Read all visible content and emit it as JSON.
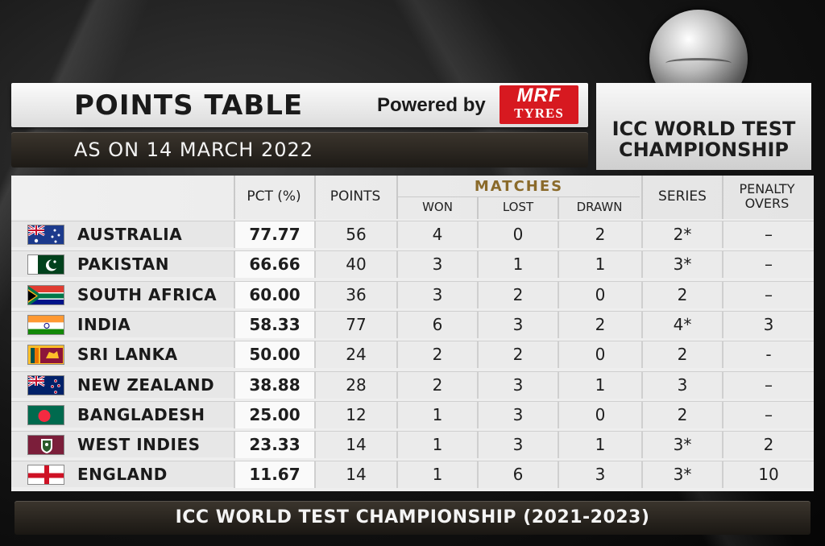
{
  "header": {
    "title": "POINTS TABLE",
    "powered_by": "Powered by",
    "sponsor_line1": "MRF",
    "sponsor_line2": "TYRES",
    "date": "AS ON 14 MARCH 2022",
    "logo_line1": "ICC WORLD TEST",
    "logo_line2": "CHAMPIONSHIP"
  },
  "columns": {
    "pct": "PCT (%)",
    "points": "POINTS",
    "matches": "MATCHES",
    "won": "WON",
    "lost": "LOST",
    "drawn": "DRAWN",
    "series": "SERIES",
    "penalty_line1": "PENALTY",
    "penalty_line2": "OVERS"
  },
  "rows": [
    {
      "team": "AUSTRALIA",
      "flag": "australia-flag",
      "pct": "77.77",
      "points": "56",
      "won": "4",
      "lost": "0",
      "drawn": "2",
      "series": "2*",
      "penalty": "–"
    },
    {
      "team": "PAKISTAN",
      "flag": "pakistan-flag",
      "pct": "66.66",
      "points": "40",
      "won": "3",
      "lost": "1",
      "drawn": "1",
      "series": "3*",
      "penalty": "–"
    },
    {
      "team": "SOUTH AFRICA",
      "flag": "south-africa-flag",
      "pct": "60.00",
      "points": "36",
      "won": "3",
      "lost": "2",
      "drawn": "0",
      "series": "2",
      "penalty": "–"
    },
    {
      "team": "INDIA",
      "flag": "india-flag",
      "pct": "58.33",
      "points": "77",
      "won": "6",
      "lost": "3",
      "drawn": "2",
      "series": "4*",
      "penalty": "3"
    },
    {
      "team": "SRI LANKA",
      "flag": "sri-lanka-flag",
      "pct": "50.00",
      "points": "24",
      "won": "2",
      "lost": "2",
      "drawn": "0",
      "series": "2",
      "penalty": "-"
    },
    {
      "team": "NEW ZEALAND",
      "flag": "new-zealand-flag",
      "pct": "38.88",
      "points": "28",
      "won": "2",
      "lost": "3",
      "drawn": "1",
      "series": "3",
      "penalty": "–"
    },
    {
      "team": "BANGLADESH",
      "flag": "bangladesh-flag",
      "pct": "25.00",
      "points": "12",
      "won": "1",
      "lost": "3",
      "drawn": "0",
      "series": "2",
      "penalty": "–"
    },
    {
      "team": "WEST INDIES",
      "flag": "west-indies-flag",
      "pct": "23.33",
      "points": "14",
      "won": "1",
      "lost": "3",
      "drawn": "1",
      "series": "3*",
      "penalty": "2"
    },
    {
      "team": "ENGLAND",
      "flag": "england-flag",
      "pct": "11.67",
      "points": "14",
      "won": "1",
      "lost": "6",
      "drawn": "3",
      "series": "3*",
      "penalty": "10"
    }
  ],
  "footer": "ICC WORLD TEST CHAMPIONSHIP (2021-2023)",
  "colors": {
    "sponsor_red": "#d71920",
    "banner_dark": "#2a251f",
    "matches_gold": "#8a6a2a"
  }
}
